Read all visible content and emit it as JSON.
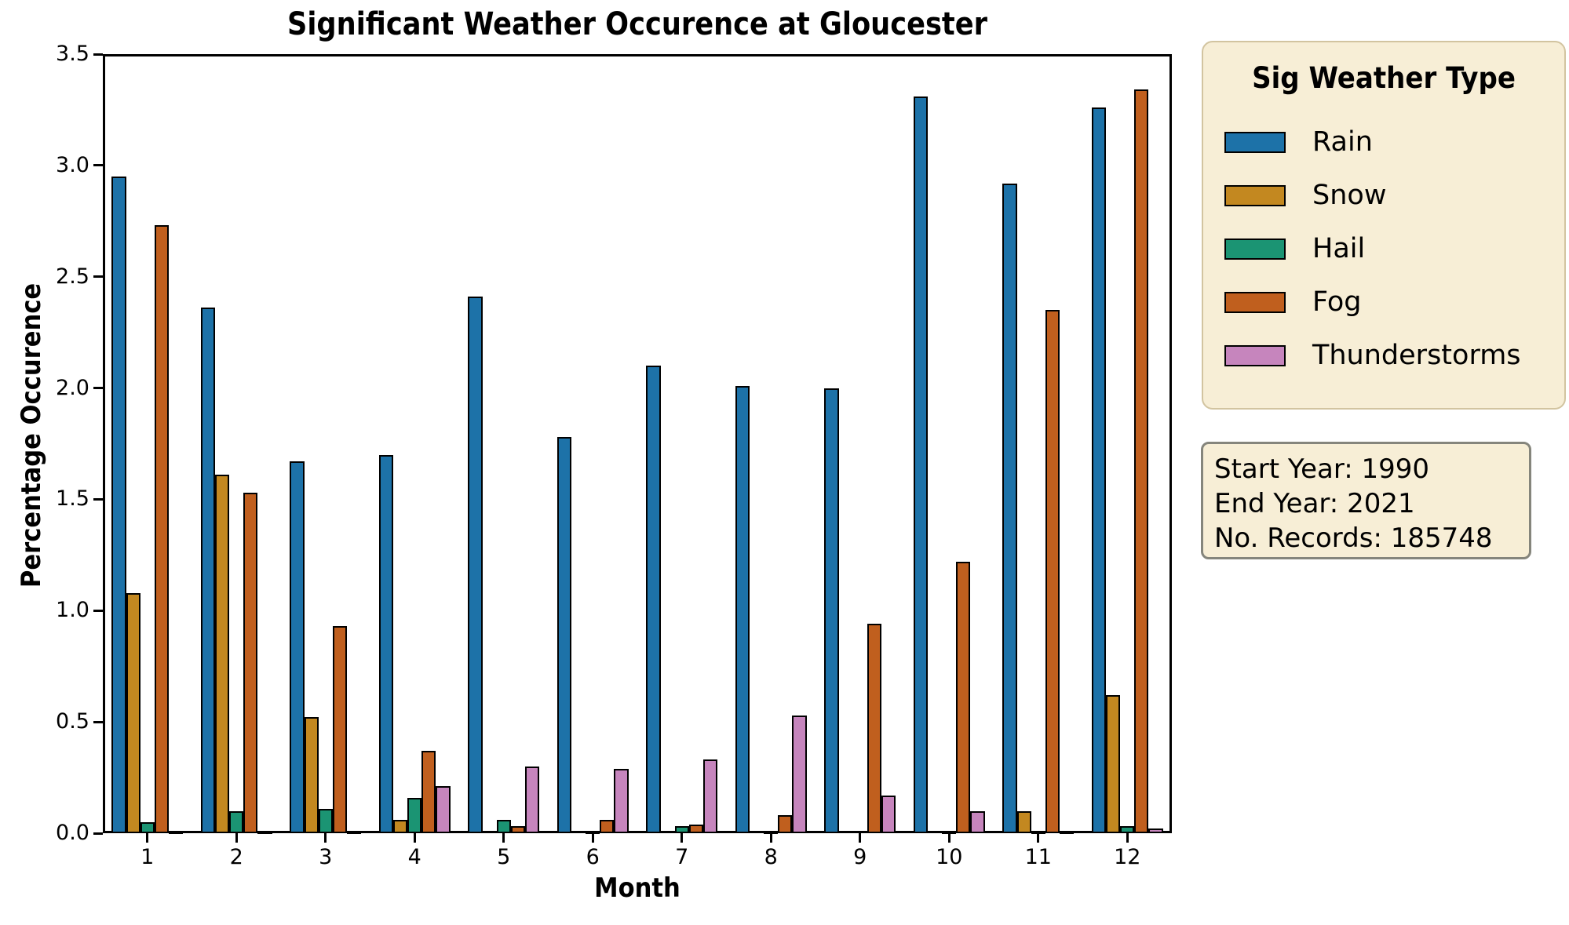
{
  "figure": {
    "title": "Significant Weather Occurence at Gloucester"
  },
  "axes": {
    "x_label": "Month",
    "y_label": "Percentage Occurence",
    "y_tick_labels": [
      "0.0",
      "0.5",
      "1.0",
      "1.5",
      "2.0",
      "2.5",
      "3.0",
      "3.5"
    ],
    "x_tick_labels": [
      "1",
      "2",
      "3",
      "4",
      "5",
      "6",
      "7",
      "8",
      "9",
      "10",
      "11",
      "12"
    ]
  },
  "legend": {
    "title": "Sig Weather Type",
    "entries": [
      {
        "label": "Rain",
        "color": "#1d72a8"
      },
      {
        "label": "Snow",
        "color": "#c38820"
      },
      {
        "label": "Hail",
        "color": "#1b9473"
      },
      {
        "label": "Fog",
        "color": "#c05f1e"
      },
      {
        "label": "Thunderstorms",
        "color": "#c685bd"
      }
    ]
  },
  "info_box": {
    "lines": [
      "Start Year: 1990",
      "End Year: 2021",
      "No. Records: 185748"
    ]
  },
  "chart_data": {
    "type": "bar",
    "title": "Significant Weather Occurence at Gloucester",
    "xlabel": "Month",
    "ylabel": "Percentage Occurence",
    "categories": [
      1,
      2,
      3,
      4,
      5,
      6,
      7,
      8,
      9,
      10,
      11,
      12
    ],
    "ylim": [
      0,
      3.5
    ],
    "y_tick_step": 0.5,
    "grid": false,
    "legend_position": "outside upper right",
    "series": [
      {
        "name": "Rain",
        "color": "#1d72a8",
        "values": [
          2.95,
          2.36,
          1.67,
          1.7,
          2.41,
          1.78,
          2.1,
          2.01,
          2.0,
          3.31,
          2.92,
          3.26
        ]
      },
      {
        "name": "Snow",
        "color": "#c38820",
        "values": [
          1.08,
          1.61,
          0.52,
          0.06,
          0,
          0,
          0,
          0,
          0,
          0,
          0.1,
          0.62
        ]
      },
      {
        "name": "Hail",
        "color": "#1b9473",
        "values": [
          0.05,
          0.1,
          0.11,
          0.16,
          0.06,
          0.01,
          0.03,
          0.01,
          0,
          0.01,
          0.01,
          0.03
        ]
      },
      {
        "name": "Fog",
        "color": "#c05f1e",
        "values": [
          2.73,
          1.53,
          0.93,
          0.37,
          0.03,
          0.06,
          0.04,
          0.08,
          0.94,
          1.22,
          2.35,
          3.34
        ]
      },
      {
        "name": "Thunderstorms",
        "color": "#c685bd",
        "values": [
          0.01,
          0.01,
          0.01,
          0.21,
          0.3,
          0.29,
          0.33,
          0.53,
          0.17,
          0.1,
          0.01,
          0.02
        ]
      }
    ],
    "annotations": {
      "start_year": "1990",
      "end_year": "2021",
      "num_records": "185748"
    }
  }
}
